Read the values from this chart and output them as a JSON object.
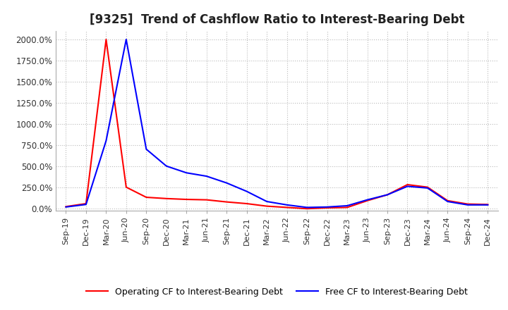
{
  "title": "[9325]  Trend of Cashflow Ratio to Interest-Bearing Debt",
  "title_fontsize": 12,
  "ylabel_ticks": [
    "0.0%",
    "250.0%",
    "500.0%",
    "750.0%",
    "1000.0%",
    "1250.0%",
    "1500.0%",
    "1750.0%",
    "2000.0%"
  ],
  "ytick_values": [
    0,
    250,
    500,
    750,
    1000,
    1250,
    1500,
    1750,
    2000
  ],
  "ylim": [
    -30,
    2100
  ],
  "x_labels": [
    "Sep-19",
    "Dec-19",
    "Mar-20",
    "Jun-20",
    "Sep-20",
    "Dec-20",
    "Mar-21",
    "Jun-21",
    "Sep-21",
    "Dec-21",
    "Mar-22",
    "Jun-22",
    "Sep-22",
    "Dec-22",
    "Mar-23",
    "Jun-23",
    "Sep-23",
    "Dec-23",
    "Mar-24",
    "Jun-24",
    "Sep-24",
    "Dec-24"
  ],
  "operating_cf": [
    20,
    55,
    2000,
    250,
    130,
    115,
    105,
    100,
    75,
    55,
    25,
    10,
    -5,
    5,
    10,
    90,
    160,
    280,
    250,
    90,
    50,
    45
  ],
  "free_cf": [
    15,
    45,
    800,
    2000,
    700,
    500,
    420,
    380,
    300,
    200,
    80,
    40,
    10,
    15,
    30,
    100,
    160,
    260,
    240,
    80,
    40,
    40
  ],
  "operating_color": "#ff0000",
  "free_color": "#0000ff",
  "line_width": 1.5,
  "background_color": "#ffffff",
  "grid_color": "#bbbbbb",
  "legend_operating": "Operating CF to Interest-Bearing Debt",
  "legend_free": "Free CF to Interest-Bearing Debt"
}
